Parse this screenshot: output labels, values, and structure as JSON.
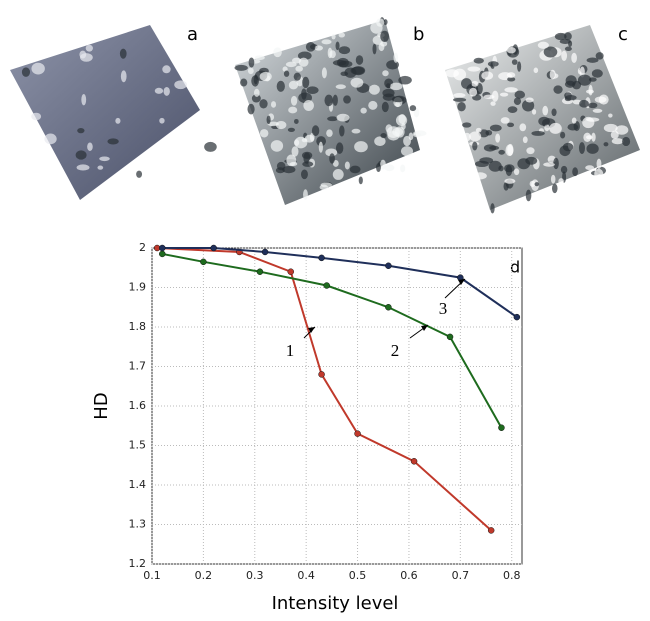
{
  "panel_labels": [
    "a",
    "b",
    "c"
  ],
  "chart_data": {
    "type": "line",
    "panel_label": "d",
    "x_label": "Intensity level",
    "y_label": "HD",
    "xlim": [
      0.1,
      0.82
    ],
    "ylim": [
      1.2,
      2.0
    ],
    "xticks": [
      0.1,
      0.2,
      0.3,
      0.4,
      0.5,
      0.6,
      0.7,
      0.8
    ],
    "yticks": [
      1.2,
      1.3,
      1.4,
      1.5,
      1.6,
      1.7,
      1.8,
      1.9,
      2
    ],
    "grid": true,
    "series": [
      {
        "name": "1",
        "color": "#c0392b",
        "x": [
          0.11,
          0.27,
          0.37,
          0.43,
          0.5,
          0.61,
          0.76
        ],
        "values": [
          2.0,
          1.99,
          1.94,
          1.68,
          1.53,
          1.46,
          1.285
        ]
      },
      {
        "name": "2",
        "color": "#1e6b1e",
        "x": [
          0.12,
          0.2,
          0.31,
          0.44,
          0.56,
          0.68,
          0.78
        ],
        "values": [
          1.985,
          1.965,
          1.94,
          1.905,
          1.85,
          1.775,
          1.545
        ]
      },
      {
        "name": "3",
        "color": "#1f2f5a",
        "x": [
          0.12,
          0.22,
          0.32,
          0.43,
          0.56,
          0.7,
          0.81
        ],
        "values": [
          2.0,
          2.0,
          1.99,
          1.975,
          1.955,
          1.925,
          1.825
        ]
      }
    ]
  }
}
